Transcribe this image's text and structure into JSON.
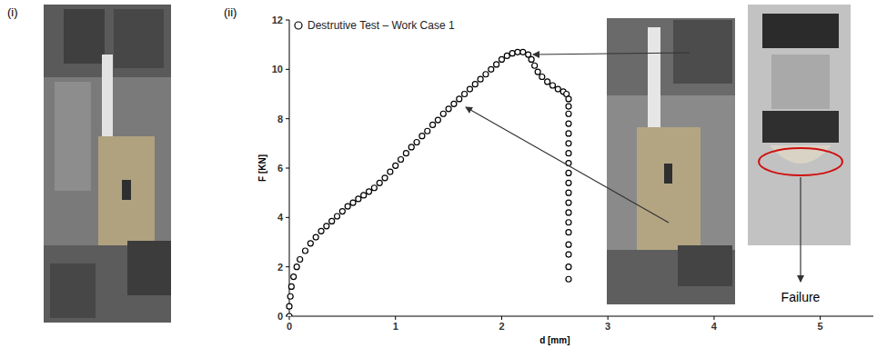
{
  "chart_data": {
    "type": "scatter",
    "panel_labels": [
      "(i)",
      "(ii)"
    ],
    "x_label": "d [mm]",
    "y_label": "F [KN]",
    "annotations": [
      "Failure"
    ],
    "xlim": [
      0,
      5.5
    ],
    "xticks": [
      0,
      1,
      2,
      3,
      4,
      5
    ],
    "ylim": [
      0,
      12
    ],
    "yticks": [
      0,
      2,
      4,
      6,
      8,
      10,
      12
    ],
    "grid": false,
    "legend": "top-left",
    "x": [
      0,
      0,
      0.01,
      0.02,
      0.04,
      0.07,
      0.1,
      0.15,
      0.2,
      0.25,
      0.3,
      0.35,
      0.4,
      0.45,
      0.5,
      0.55,
      0.6,
      0.65,
      0.7,
      0.75,
      0.8,
      0.85,
      0.9,
      0.95,
      1.0,
      1.05,
      1.1,
      1.15,
      1.2,
      1.25,
      1.3,
      1.35,
      1.4,
      1.45,
      1.5,
      1.55,
      1.6,
      1.65,
      1.7,
      1.75,
      1.8,
      1.85,
      1.9,
      1.95,
      2.0,
      2.05,
      2.1,
      2.15,
      2.2,
      2.25,
      2.28,
      2.31,
      2.34,
      2.38,
      2.43,
      2.48,
      2.53,
      2.58,
      2.61,
      2.63,
      2.63,
      2.63,
      2.63,
      2.63,
      2.63,
      2.63,
      2.63,
      2.63,
      2.63,
      2.63,
      2.63,
      2.63,
      2.63,
      2.63,
      2.63,
      2.63,
      2.63,
      2.63
    ],
    "series": [
      {
        "name": "Destrutive Test – Work Case 1",
        "color": "#000000",
        "marker": "circle",
        "values": [
          0,
          0.4,
          0.8,
          1.2,
          1.6,
          2.0,
          2.3,
          2.65,
          2.95,
          3.2,
          3.45,
          3.65,
          3.85,
          4.05,
          4.25,
          4.45,
          4.6,
          4.75,
          4.9,
          5.05,
          5.2,
          5.4,
          5.6,
          5.85,
          6.1,
          6.35,
          6.6,
          6.85,
          7.05,
          7.3,
          7.5,
          7.75,
          7.95,
          8.2,
          8.4,
          8.6,
          8.8,
          9.0,
          9.2,
          9.4,
          9.6,
          9.8,
          10.0,
          10.2,
          10.4,
          10.55,
          10.65,
          10.7,
          10.7,
          10.6,
          10.4,
          10.15,
          9.9,
          9.7,
          9.5,
          9.35,
          9.2,
          9.1,
          9.0,
          8.8,
          8.5,
          8.2,
          7.8,
          7.4,
          7.0,
          6.6,
          6.2,
          5.8,
          5.4,
          5.0,
          4.6,
          4.2,
          3.8,
          3.4,
          2.9,
          2.5,
          2.0,
          1.5
        ]
      }
    ]
  }
}
